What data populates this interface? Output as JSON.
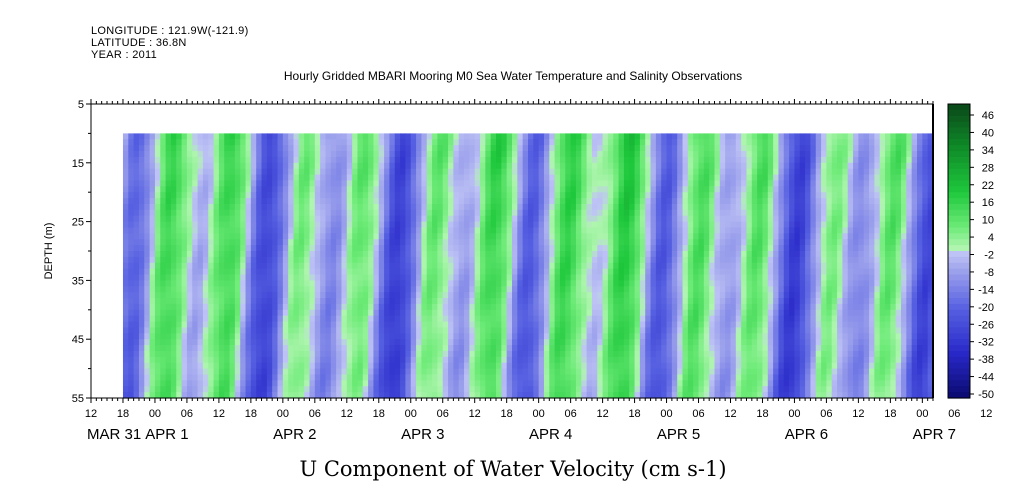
{
  "header": {
    "longitude": "LONGITUDE : 121.9W(-121.9)",
    "latitude": "LATITUDE : 36.8N",
    "year": "YEAR : 2011"
  },
  "chart_data": {
    "type": "heatmap",
    "title": "Hourly Gridded MBARI Mooring M0 Sea Water Temperature and Salinity Observations",
    "xlabel": "U Component of Water Velocity (cm s-1)",
    "ylabel": "DEPTH (m)",
    "y_ticks": [
      5,
      15,
      25,
      35,
      45,
      55
    ],
    "ylim": [
      5,
      55
    ],
    "y_inverted": true,
    "data_depth_range": [
      10,
      55
    ],
    "x_hour_ticks": [
      "12",
      "18",
      "00",
      "06",
      "12",
      "18",
      "00",
      "06",
      "12",
      "18",
      "00",
      "06",
      "12",
      "18",
      "00",
      "06",
      "12",
      "18",
      "00",
      "06",
      "12",
      "18",
      "00",
      "06",
      "12",
      "18",
      "00",
      "06",
      "12",
      "18",
      "00",
      "06",
      "12"
    ],
    "x_date_labels": [
      "MAR 31",
      "APR 1",
      "APR 2",
      "APR 3",
      "APR 4",
      "APR 5",
      "APR 6",
      "APR 7"
    ],
    "x_time_range_hours": [
      "MAR 31 12:00",
      "APR 7 14:00"
    ],
    "data_start": "MAR 31 18:00",
    "colorbar": {
      "labels": [
        "46",
        "40",
        "34",
        "28",
        "22",
        "16",
        "10",
        "4",
        "-2",
        "-8",
        "-14",
        "-20",
        "-26",
        "-32",
        "-38",
        "-44",
        "-50"
      ],
      "range": [
        -50,
        50
      ]
    },
    "colors": {
      "negative_strong": "#1a1a8c",
      "negative_light": "#b0b4f0",
      "positive_light": "#a8f0a8",
      "positive_strong": "#12c93a",
      "positive_max": "#0b5a1e"
    }
  }
}
